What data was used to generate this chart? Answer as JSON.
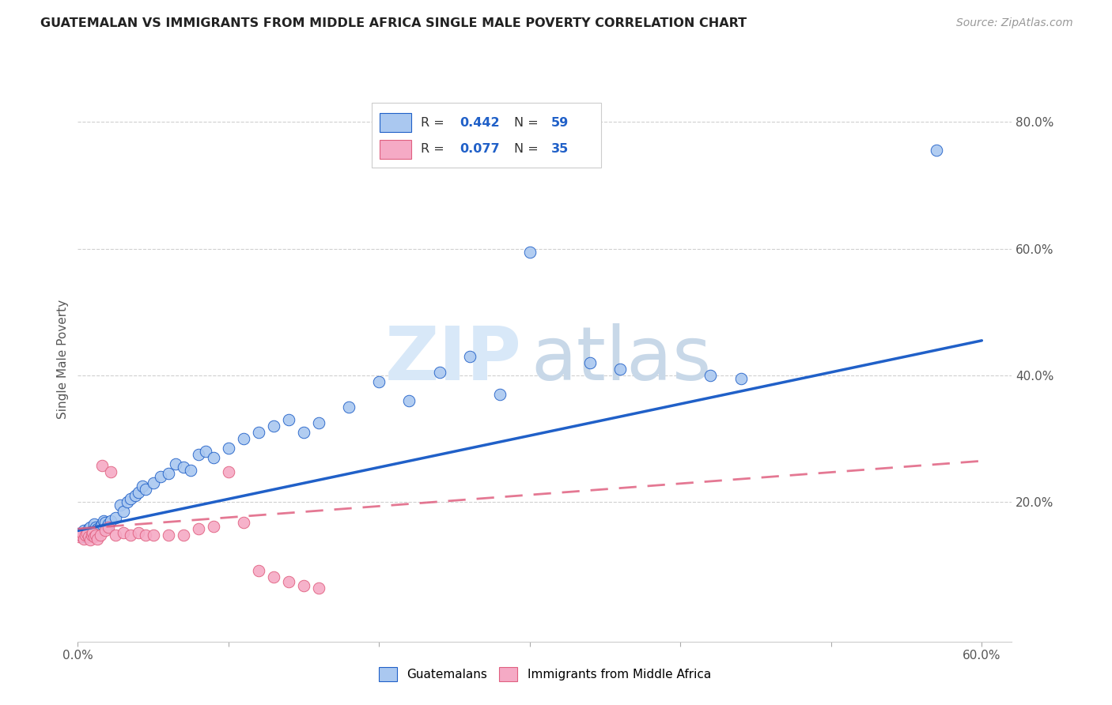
{
  "title": "GUATEMALAN VS IMMIGRANTS FROM MIDDLE AFRICA SINGLE MALE POVERTY CORRELATION CHART",
  "source": "Source: ZipAtlas.com",
  "ylabel": "Single Male Poverty",
  "xlim": [
    0.0,
    0.62
  ],
  "ylim": [
    -0.02,
    0.87
  ],
  "x_ticks": [
    0.0,
    0.1,
    0.2,
    0.3,
    0.4,
    0.5,
    0.6
  ],
  "x_tick_labels": [
    "0.0%",
    "",
    "",
    "",
    "",
    "",
    "60.0%"
  ],
  "y_ticks": [
    0.0,
    0.2,
    0.4,
    0.6,
    0.8
  ],
  "y_tick_labels_right": [
    "",
    "20.0%",
    "40.0%",
    "60.0%",
    "80.0%"
  ],
  "R_guatemalan": 0.442,
  "N_guatemalan": 59,
  "R_middle_africa": 0.077,
  "N_middle_africa": 35,
  "guatemalan_color": "#aac8f0",
  "middle_africa_color": "#f5aac5",
  "trend_guatemalan_color": "#2060c8",
  "trend_middle_africa_color": "#e06080",
  "background_color": "#ffffff",
  "grid_color": "#d0d0d0",
  "watermark_zip": "ZIP",
  "watermark_atlas": "atlas",
  "guatemalan_x": [
    0.001,
    0.002,
    0.003,
    0.004,
    0.005,
    0.005,
    0.006,
    0.007,
    0.008,
    0.009,
    0.01,
    0.011,
    0.012,
    0.013,
    0.014,
    0.015,
    0.016,
    0.017,
    0.018,
    0.019,
    0.02,
    0.022,
    0.025,
    0.028,
    0.03,
    0.033,
    0.035,
    0.038,
    0.04,
    0.043,
    0.045,
    0.05,
    0.055,
    0.06,
    0.065,
    0.07,
    0.075,
    0.08,
    0.085,
    0.09,
    0.1,
    0.11,
    0.12,
    0.13,
    0.14,
    0.15,
    0.16,
    0.18,
    0.2,
    0.22,
    0.24,
    0.26,
    0.28,
    0.3,
    0.34,
    0.36,
    0.42,
    0.44,
    0.57
  ],
  "guatemalan_y": [
    0.15,
    0.148,
    0.145,
    0.155,
    0.152,
    0.145,
    0.148,
    0.158,
    0.16,
    0.15,
    0.155,
    0.165,
    0.16,
    0.158,
    0.155,
    0.162,
    0.165,
    0.17,
    0.168,
    0.16,
    0.165,
    0.17,
    0.175,
    0.195,
    0.185,
    0.2,
    0.205,
    0.21,
    0.215,
    0.225,
    0.22,
    0.23,
    0.24,
    0.245,
    0.26,
    0.255,
    0.25,
    0.275,
    0.28,
    0.27,
    0.285,
    0.3,
    0.31,
    0.32,
    0.33,
    0.31,
    0.325,
    0.35,
    0.39,
    0.36,
    0.405,
    0.43,
    0.37,
    0.595,
    0.42,
    0.41,
    0.4,
    0.395,
    0.755
  ],
  "middle_africa_x": [
    0.001,
    0.002,
    0.003,
    0.004,
    0.005,
    0.006,
    0.007,
    0.008,
    0.009,
    0.01,
    0.011,
    0.012,
    0.013,
    0.015,
    0.016,
    0.018,
    0.02,
    0.022,
    0.025,
    0.03,
    0.035,
    0.04,
    0.045,
    0.05,
    0.06,
    0.07,
    0.08,
    0.09,
    0.1,
    0.11,
    0.12,
    0.13,
    0.14,
    0.15,
    0.16
  ],
  "middle_africa_y": [
    0.145,
    0.148,
    0.15,
    0.142,
    0.148,
    0.15,
    0.145,
    0.14,
    0.148,
    0.152,
    0.145,
    0.148,
    0.142,
    0.148,
    0.258,
    0.155,
    0.16,
    0.248,
    0.148,
    0.152,
    0.148,
    0.152,
    0.148,
    0.148,
    0.148,
    0.148,
    0.158,
    0.162,
    0.248,
    0.168,
    0.092,
    0.082,
    0.075,
    0.068,
    0.065
  ]
}
